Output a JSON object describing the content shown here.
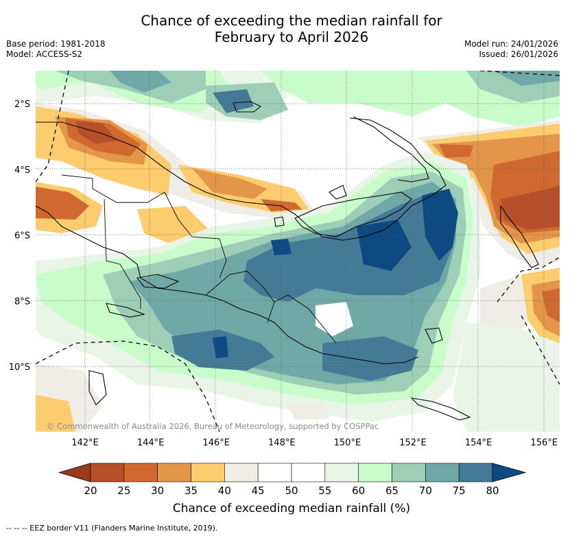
{
  "title_line1": "Chance of exceeding the median rainfall for",
  "title_line2": "February to April 2026",
  "base_period": "Base period: 1981-2018",
  "model": "Model: ACCESS-S2",
  "model_run": "Model run: 24/01/2026",
  "issued": "Issued: 26/01/2026",
  "copyright": "© Commonwealth of Australia 2026, Bureau of Meteorology, supported by COSPPac",
  "lon_labels": [
    "142°E",
    "144°E",
    "146°E",
    "148°E",
    "150°E",
    "152°E",
    "154°E",
    "156°E"
  ],
  "lat_labels": [
    "2°S",
    "4°S",
    "6°S",
    "8°S",
    "10°S"
  ],
  "colorbar": {
    "title": "Chance of exceeding median rainfall (%)",
    "tick_labels": [
      "20",
      "25",
      "30",
      "35",
      "40",
      "45",
      "50",
      "55",
      "60",
      "65",
      "70",
      "75",
      "80"
    ],
    "under_color": "#993a1c",
    "over_color": "#0d4a82",
    "colors": [
      "#b5502a",
      "#d0692f",
      "#e3964a",
      "#fdcc6e",
      "#f0ede6",
      "#ffffff",
      "#ffffff",
      "#e9f5e6",
      "#c8fdcb",
      "#9ccfb5",
      "#70a8a8",
      "#457a96"
    ]
  },
  "footer": "--  --  -- EEZ border V11 (Flanders Marine Institute, 2019)."
}
